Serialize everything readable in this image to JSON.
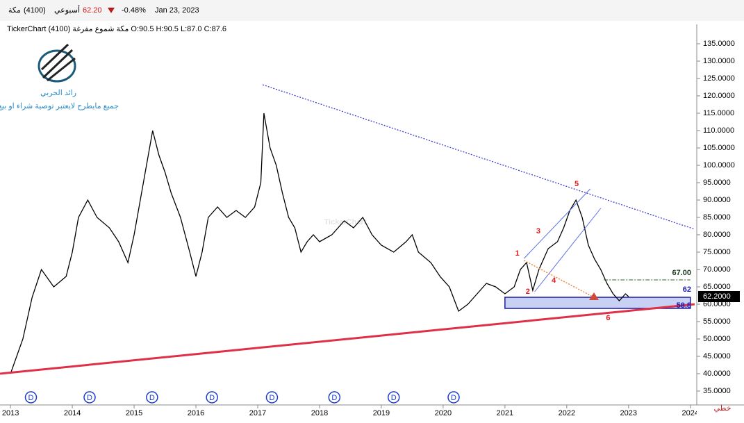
{
  "header": {
    "symbol": "مكة",
    "code": "(4100)",
    "period": "أسبوعي",
    "price": "62.20",
    "change": "-0.48%",
    "date": "Jan 23, 2023",
    "info": "TickerChart مكة شموع مفرغة (4100) O:90.5 H:90.5 L:87.0 C:87.6"
  },
  "logo": {
    "name": "رائد الحربي",
    "disclaimer": "جميع مايطرح لايعتبر توصية شراء او بيع"
  },
  "watermark": "TickerChart",
  "chart_type_label": "خطي",
  "chart_data": {
    "type": "line",
    "x": [
      2013.0,
      2013.2,
      2013.35,
      2013.5,
      2013.7,
      2013.9,
      2014.0,
      2014.1,
      2014.25,
      2014.4,
      2014.6,
      2014.75,
      2014.9,
      2015.0,
      2015.1,
      2015.2,
      2015.3,
      2015.4,
      2015.5,
      2015.6,
      2015.75,
      2015.9,
      2016.0,
      2016.1,
      2016.2,
      2016.35,
      2016.5,
      2016.65,
      2016.8,
      2016.95,
      2017.05,
      2017.1,
      2017.2,
      2017.3,
      2017.4,
      2017.5,
      2017.6,
      2017.7,
      2017.8,
      2017.9,
      2018.0,
      2018.2,
      2018.4,
      2018.55,
      2018.7,
      2018.85,
      2019.0,
      2019.2,
      2019.4,
      2019.5,
      2019.6,
      2019.8,
      2019.95,
      2020.1,
      2020.25,
      2020.4,
      2020.55,
      2020.7,
      2020.85,
      2021.0,
      2021.15,
      2021.25,
      2021.35,
      2021.45,
      2021.55,
      2021.7,
      2021.85,
      2021.95,
      2022.05,
      2022.15,
      2022.25,
      2022.35,
      2022.45,
      2022.55,
      2022.65,
      2022.75,
      2022.85,
      2022.95,
      2023.0
    ],
    "series": [
      {
        "color": "#000000",
        "values": [
          40,
          50,
          62,
          70,
          65,
          68,
          75,
          85,
          90,
          85,
          82,
          78,
          72,
          80,
          90,
          100,
          110,
          103,
          98,
          92,
          85,
          75,
          68,
          75,
          85,
          88,
          85,
          87,
          85,
          88,
          95,
          115,
          105,
          100,
          92,
          85,
          82,
          75,
          78,
          80,
          78,
          80,
          84,
          82,
          85,
          80,
          77,
          75,
          78,
          80,
          75,
          72,
          68,
          65,
          58,
          60,
          63,
          66,
          65,
          63,
          65,
          70,
          72,
          64,
          70,
          76,
          78,
          82,
          87,
          90,
          85,
          77,
          73,
          70,
          66,
          63,
          61,
          63,
          62.2
        ]
      }
    ],
    "xlim": [
      2012.83,
      2024.07
    ],
    "ylim": [
      31,
      140.6
    ],
    "xticks": [
      2013,
      2014,
      2015,
      2016,
      2017,
      2018,
      2019,
      2020,
      2021,
      2022,
      2023,
      2024
    ],
    "yticks": [
      {
        "value": 35,
        "label": "35.0000"
      },
      {
        "value": 40,
        "label": "40.0000"
      },
      {
        "value": 45,
        "label": "45.0000"
      },
      {
        "value": 50,
        "label": "50.0000"
      },
      {
        "value": 55,
        "label": "55.0000"
      },
      {
        "value": 60,
        "label": "60.0000"
      },
      {
        "value": 65,
        "label": "65.0000"
      },
      {
        "value": 70,
        "label": "70.0000"
      },
      {
        "value": 75,
        "label": "75.0000"
      },
      {
        "value": 80,
        "label": "80.0000"
      },
      {
        "value": 85,
        "label": "85.0000"
      },
      {
        "value": 90,
        "label": "90.0000"
      },
      {
        "value": 95,
        "label": "95.0000"
      },
      {
        "value": 100,
        "label": "100.0000"
      },
      {
        "value": 105,
        "label": "105.0000"
      },
      {
        "value": 110,
        "label": "110.0000"
      },
      {
        "value": 115,
        "label": "115.0000"
      },
      {
        "value": 120,
        "label": "120.0000"
      },
      {
        "value": 125,
        "label": "125.0000"
      },
      {
        "value": 130,
        "label": "130.0000"
      },
      {
        "value": 135,
        "label": "135.0000"
      }
    ],
    "last_price": {
      "value": 62.2,
      "label": "62.2000"
    },
    "trendlines": [
      {
        "x": [
          2017.08,
          2024.07
        ],
        "y": [
          123.2,
          81.6
        ],
        "color": "#3b3bd6",
        "dash": true
      },
      {
        "x": [
          2012.83,
          2024.07
        ],
        "y": [
          40,
          60
        ],
        "color": "#e03048",
        "dash": false
      },
      {
        "x": [
          2021.31,
          2022.38
        ],
        "y": [
          73.2,
          93.2
        ],
        "color": "#5a6ee8",
        "dash": false
      },
      {
        "x": [
          2021.48,
          2022.55
        ],
        "y": [
          63.6,
          87.6
        ],
        "color": "#5a6ee8",
        "dash": false
      },
      {
        "x": [
          2021.31,
          2022.44
        ],
        "y": [
          72.6,
          62
        ],
        "color": "#e8782a",
        "dash": true
      }
    ],
    "zone": {
      "x": [
        2021.0,
        2024.0
      ],
      "y": [
        58.8,
        62
      ],
      "labels": [
        "58.8",
        "62"
      ]
    },
    "level": {
      "x": [
        2022.6,
        2024.0
      ],
      "value": 67,
      "label": "67.00"
    },
    "waves": [
      {
        "label": "1",
        "x": 2021.2,
        "y": 74.6
      },
      {
        "label": "2",
        "x": 2021.37,
        "y": 63.6
      },
      {
        "label": "3",
        "x": 2021.54,
        "y": 81
      },
      {
        "label": "4",
        "x": 2021.79,
        "y": 66.8
      },
      {
        "label": "5",
        "x": 2022.16,
        "y": 94.6
      },
      {
        "label": "6",
        "x": 2022.67,
        "y": 56
      }
    ],
    "events": {
      "label": "D",
      "x": [
        2013.33,
        2014.28,
        2015.29,
        2016.26,
        2017.23,
        2018.24,
        2019.2,
        2020.17
      ]
    }
  }
}
